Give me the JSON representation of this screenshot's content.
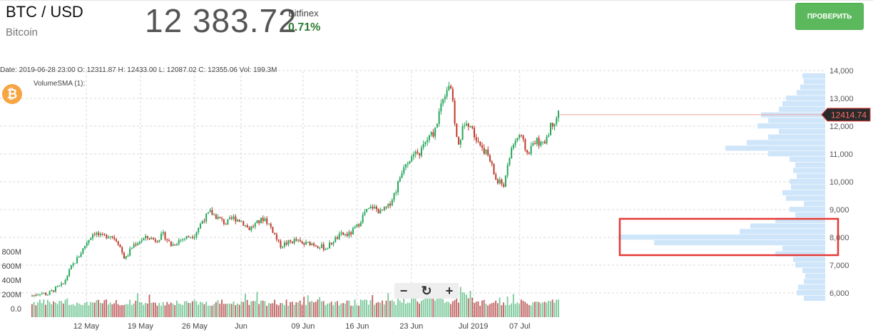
{
  "header": {
    "pair": "BTC / USD",
    "name": "Bitcoin",
    "price": "12 383.72",
    "exchange": "Bitfinex",
    "change": "0.71%",
    "check_button": "ПРОВЕРИТЬ"
  },
  "chart_info": {
    "ohlc_line": "Date: 2019-06-28 23:00 O: 12311.87 H: 12433.00 L: 12087.02 C: 12355.06 Vol: 199.3M",
    "volume_sma_label": "VolumeSMA (1):",
    "logo_glyph": "₿"
  },
  "controls": {
    "zoom_out": "−",
    "reset": "↻",
    "zoom_in": "+"
  },
  "colors": {
    "up": "#26a65b",
    "down": "#c0392b",
    "volume_up": "#7ac89a",
    "volume_down": "#c06060",
    "profile": "#cfe6fa",
    "last_price_bg": "#2a2a2a",
    "last_price_border": "#e53935",
    "highlight": "#e53935"
  },
  "chart_data": {
    "type": "candlestick",
    "title": "",
    "xlabel": "",
    "ylabel": "",
    "ylim": [
      5700,
      14000
    ],
    "price_ticks": [
      "6,000",
      "7,000",
      "8,000",
      "9,000",
      "10,000",
      "11,000",
      "12,000",
      "13,000",
      "14,000"
    ],
    "price_tick_values": [
      6000,
      7000,
      8000,
      9000,
      10000,
      11000,
      12000,
      13000,
      14000
    ],
    "volume_ticks": [
      "0.0",
      "200M",
      "400M",
      "600M",
      "800M"
    ],
    "volume_tick_values": [
      0,
      200,
      400,
      600,
      800
    ],
    "volume_unit": "M",
    "volume_max": 800,
    "x_labels": [
      "12 May",
      "19 May",
      "26 May",
      "Jun",
      "09 Jun",
      "16 Jun",
      "23 Jun",
      "Jul 2019",
      "07 Jul"
    ],
    "x_label_days": [
      12,
      19,
      26,
      32,
      40,
      47,
      54,
      62,
      68
    ],
    "day_range": [
      5,
      73
    ],
    "last_price": "12414.74",
    "last_price_value": 12414.74,
    "price_anchors": [
      [
        5,
        5900
      ],
      [
        6,
        6000
      ],
      [
        7,
        5950
      ],
      [
        8,
        6150
      ],
      [
        9,
        6300
      ],
      [
        10,
        6900
      ],
      [
        11,
        7300
      ],
      [
        12,
        7800
      ],
      [
        13,
        8200
      ],
      [
        14,
        8000
      ],
      [
        15,
        8100
      ],
      [
        16,
        7900
      ],
      [
        17,
        7200
      ],
      [
        18,
        7700
      ],
      [
        19,
        7900
      ],
      [
        20,
        8000
      ],
      [
        21,
        7900
      ],
      [
        22,
        8100
      ],
      [
        23,
        7700
      ],
      [
        24,
        7900
      ],
      [
        25,
        8000
      ],
      [
        26,
        8100
      ],
      [
        27,
        8600
      ],
      [
        28,
        8900
      ],
      [
        29,
        8700
      ],
      [
        30,
        8500
      ],
      [
        31,
        8700
      ],
      [
        32,
        8600
      ],
      [
        33,
        8300
      ],
      [
        34,
        8500
      ],
      [
        35,
        8700
      ],
      [
        36,
        8300
      ],
      [
        37,
        7700
      ],
      [
        38,
        7800
      ],
      [
        39,
        7900
      ],
      [
        40,
        7750
      ],
      [
        41,
        7800
      ],
      [
        42,
        7700
      ],
      [
        43,
        7600
      ],
      [
        44,
        7900
      ],
      [
        45,
        8100
      ],
      [
        46,
        8100
      ],
      [
        47,
        8400
      ],
      [
        48,
        8900
      ],
      [
        49,
        9100
      ],
      [
        50,
        8900
      ],
      [
        51,
        9100
      ],
      [
        52,
        9700
      ],
      [
        53,
        10600
      ],
      [
        54,
        10900
      ],
      [
        55,
        11000
      ],
      [
        56,
        11500
      ],
      [
        57,
        11800
      ],
      [
        58,
        13000
      ],
      [
        59,
        13600
      ],
      [
        60,
        11200
      ],
      [
        61,
        12300
      ],
      [
        62,
        11800
      ],
      [
        63,
        11300
      ],
      [
        64,
        10900
      ],
      [
        65,
        10000
      ],
      [
        66,
        9900
      ],
      [
        67,
        11300
      ],
      [
        68,
        11700
      ],
      [
        69,
        11000
      ],
      [
        70,
        11500
      ],
      [
        71,
        11300
      ],
      [
        72,
        12000
      ],
      [
        73,
        12450
      ]
    ],
    "volume_profile": [
      [
        5800,
        30
      ],
      [
        6000,
        40
      ],
      [
        6200,
        38
      ],
      [
        6400,
        30
      ],
      [
        6600,
        28
      ],
      [
        6800,
        32
      ],
      [
        7000,
        42
      ],
      [
        7200,
        45
      ],
      [
        7400,
        70
      ],
      [
        7600,
        60
      ],
      [
        7800,
        240
      ],
      [
        8000,
        290
      ],
      [
        8200,
        120
      ],
      [
        8400,
        105
      ],
      [
        8600,
        70
      ],
      [
        8800,
        42
      ],
      [
        9000,
        50
      ],
      [
        9200,
        30
      ],
      [
        9400,
        55
      ],
      [
        9600,
        60
      ],
      [
        9800,
        48
      ],
      [
        10000,
        50
      ],
      [
        10200,
        40
      ],
      [
        10400,
        45
      ],
      [
        10600,
        42
      ],
      [
        10800,
        50
      ],
      [
        11000,
        80
      ],
      [
        11200,
        140
      ],
      [
        11400,
        110
      ],
      [
        11600,
        80
      ],
      [
        11800,
        65
      ],
      [
        12000,
        95
      ],
      [
        12200,
        80
      ],
      [
        12400,
        90
      ],
      [
        12600,
        65
      ],
      [
        12800,
        60
      ],
      [
        13000,
        55
      ],
      [
        13200,
        40
      ],
      [
        13400,
        35
      ],
      [
        13600,
        30
      ],
      [
        13800,
        32
      ]
    ]
  }
}
